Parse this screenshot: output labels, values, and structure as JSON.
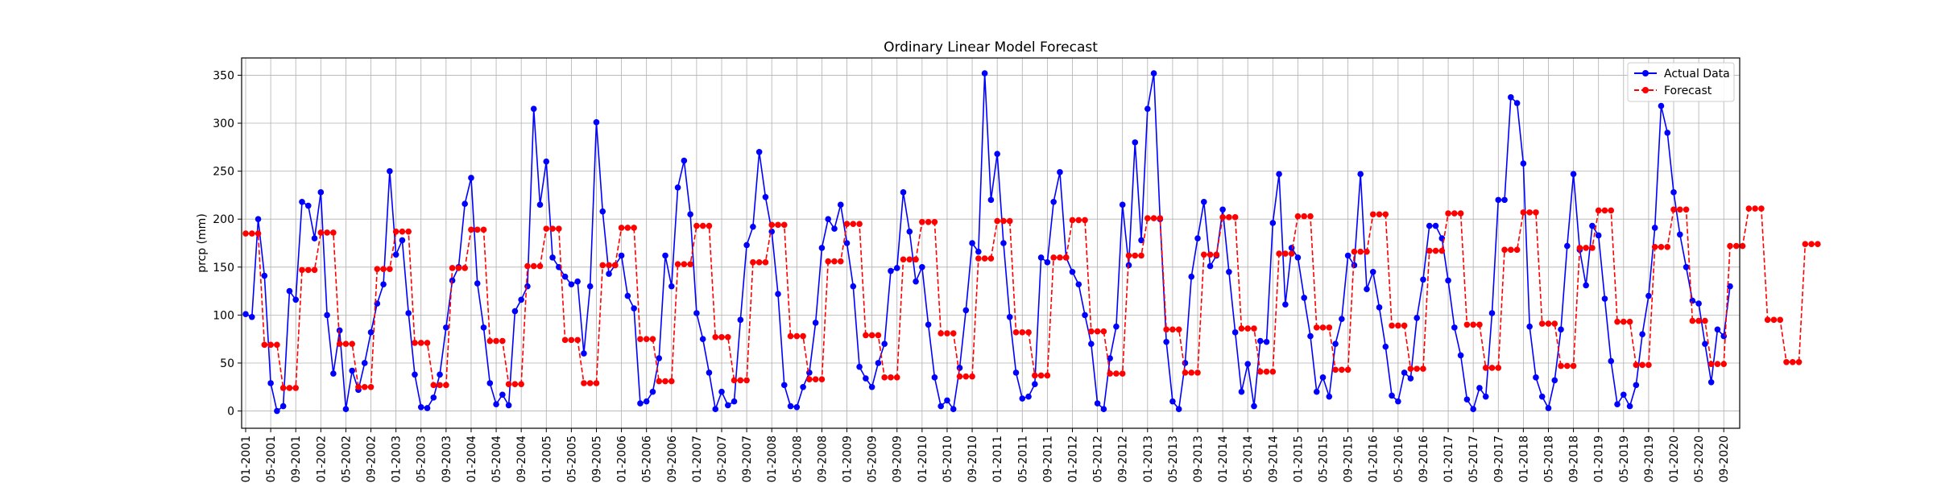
{
  "chart_data": {
    "type": "line",
    "title": "Ordinary Linear Model Forecast",
    "xlabel": "",
    "ylabel": "prcp (mm)",
    "ylim": [
      -18,
      368
    ],
    "yticks": [
      0,
      50,
      100,
      150,
      200,
      250,
      300,
      350
    ],
    "x_start": "2001-01",
    "x_end": "2020-12",
    "x_tick_labels": [
      "01-2001",
      "05-2001",
      "09-2001",
      "01-2002",
      "05-2002",
      "09-2002",
      "01-2003",
      "05-2003",
      "09-2003",
      "01-2004",
      "05-2004",
      "09-2004",
      "01-2005",
      "05-2005",
      "09-2005",
      "01-2006",
      "05-2006",
      "09-2006",
      "01-2007",
      "05-2007",
      "09-2007",
      "01-2008",
      "05-2008",
      "09-2008",
      "01-2009",
      "05-2009",
      "09-2009",
      "01-2010",
      "05-2010",
      "09-2010",
      "01-2011",
      "05-2011",
      "09-2011",
      "01-2012",
      "05-2012",
      "09-2012",
      "01-2013",
      "05-2013",
      "09-2013",
      "01-2014",
      "05-2014",
      "09-2014",
      "01-2015",
      "05-2015",
      "09-2015",
      "01-2016",
      "05-2016",
      "09-2016",
      "01-2017",
      "05-2017",
      "09-2017",
      "01-2018",
      "05-2018",
      "09-2018",
      "01-2019",
      "05-2019",
      "09-2019",
      "01-2020",
      "05-2020",
      "09-2020"
    ],
    "grid": true,
    "legend_position": "top-right",
    "series": [
      {
        "name": "Actual Data",
        "color": "#0000ff",
        "line_style": "solid",
        "values": [
          101,
          98,
          200,
          141,
          29,
          0,
          5,
          125,
          116,
          218,
          214,
          180,
          228,
          100,
          39,
          84,
          2,
          42,
          22,
          50,
          82,
          112,
          132,
          250,
          163,
          178,
          102,
          38,
          4,
          3,
          14,
          38,
          87,
          136,
          150,
          216,
          243,
          133,
          87,
          29,
          7,
          17,
          6,
          104,
          116,
          130,
          315,
          215,
          260,
          160,
          150,
          140,
          132,
          135,
          60,
          130,
          301,
          208,
          143,
          152,
          162,
          120,
          107,
          8,
          10,
          20,
          55,
          162,
          130,
          233,
          261,
          205,
          102,
          75,
          40,
          2,
          20,
          6,
          10,
          95,
          173,
          192,
          270,
          223,
          187,
          122,
          27,
          5,
          4,
          25,
          40,
          92,
          170,
          200,
          190,
          215,
          175,
          130,
          46,
          34,
          25,
          50,
          70,
          146,
          149,
          228,
          187,
          135,
          150,
          90,
          35,
          5,
          11,
          2,
          45,
          105,
          175,
          166,
          352,
          220,
          268,
          175,
          98,
          40,
          13,
          15,
          28,
          160,
          155,
          218,
          249,
          160,
          145,
          132,
          100,
          70,
          8,
          2,
          55,
          88,
          215,
          152,
          280,
          178,
          315,
          352,
          200,
          72,
          10,
          2,
          50,
          140,
          180,
          218,
          151,
          162,
          210,
          145,
          82,
          20,
          49,
          5,
          73,
          72,
          196,
          247,
          111,
          170,
          160,
          118,
          78,
          20,
          35,
          15,
          70,
          96,
          162,
          152,
          247,
          127,
          145,
          108,
          67,
          16,
          10,
          40,
          34,
          97,
          137,
          193,
          193,
          180,
          136,
          87,
          58,
          12,
          2,
          24,
          15,
          102,
          220,
          220,
          327,
          321,
          258,
          88,
          35,
          15,
          3,
          32,
          85,
          172,
          247,
          168,
          131,
          193,
          183,
          117,
          52,
          7,
          17,
          5,
          27,
          80,
          120,
          191,
          318,
          290,
          228,
          184,
          150,
          115,
          112,
          70,
          30,
          85,
          78,
          130
        ]
      },
      {
        "name": "Forecast",
        "color": "#ff0000",
        "line_style": "dashed",
        "values": [
          185,
          185,
          185,
          69,
          69,
          69,
          24,
          24,
          24,
          147,
          147,
          147,
          186,
          186,
          186,
          70,
          70,
          70,
          25,
          25,
          25,
          148,
          148,
          148,
          187,
          187,
          187,
          71,
          71,
          71,
          27,
          27,
          27,
          149,
          149,
          149,
          189,
          189,
          189,
          73,
          73,
          73,
          28,
          28,
          28,
          151,
          151,
          151,
          190,
          190,
          190,
          74,
          74,
          74,
          29,
          29,
          29,
          152,
          152,
          152,
          191,
          191,
          191,
          75,
          75,
          75,
          31,
          31,
          31,
          153,
          153,
          153,
          193,
          193,
          193,
          77,
          77,
          77,
          32,
          32,
          32,
          155,
          155,
          155,
          194,
          194,
          194,
          78,
          78,
          78,
          33,
          33,
          33,
          156,
          156,
          156,
          195,
          195,
          195,
          79,
          79,
          79,
          35,
          35,
          35,
          158,
          158,
          158,
          197,
          197,
          197,
          81,
          81,
          81,
          36,
          36,
          36,
          159,
          159,
          159,
          198,
          198,
          198,
          82,
          82,
          82,
          37,
          37,
          37,
          160,
          160,
          160,
          199,
          199,
          199,
          83,
          83,
          83,
          39,
          39,
          39,
          162,
          162,
          162,
          201,
          201,
          201,
          85,
          85,
          85,
          40,
          40,
          40,
          163,
          163,
          163,
          202,
          202,
          202,
          86,
          86,
          86,
          41,
          41,
          41,
          164,
          164,
          164,
          203,
          203,
          203,
          87,
          87,
          87,
          43,
          43,
          43,
          166,
          166,
          166,
          205,
          205,
          205,
          89,
          89,
          89,
          44,
          44,
          44,
          167,
          167,
          167,
          206,
          206,
          206,
          90,
          90,
          90,
          45,
          45,
          45,
          168,
          168,
          168,
          207,
          207,
          207,
          91,
          91,
          91,
          47,
          47,
          47,
          170,
          170,
          170,
          209,
          209,
          209,
          93,
          93,
          93,
          48,
          48,
          48,
          171,
          171,
          171,
          210,
          210,
          210,
          94,
          94,
          94,
          49,
          49,
          49,
          172,
          172,
          172,
          211,
          211,
          211,
          95,
          95,
          95,
          51,
          51,
          51,
          174,
          174,
          174
        ]
      }
    ]
  }
}
